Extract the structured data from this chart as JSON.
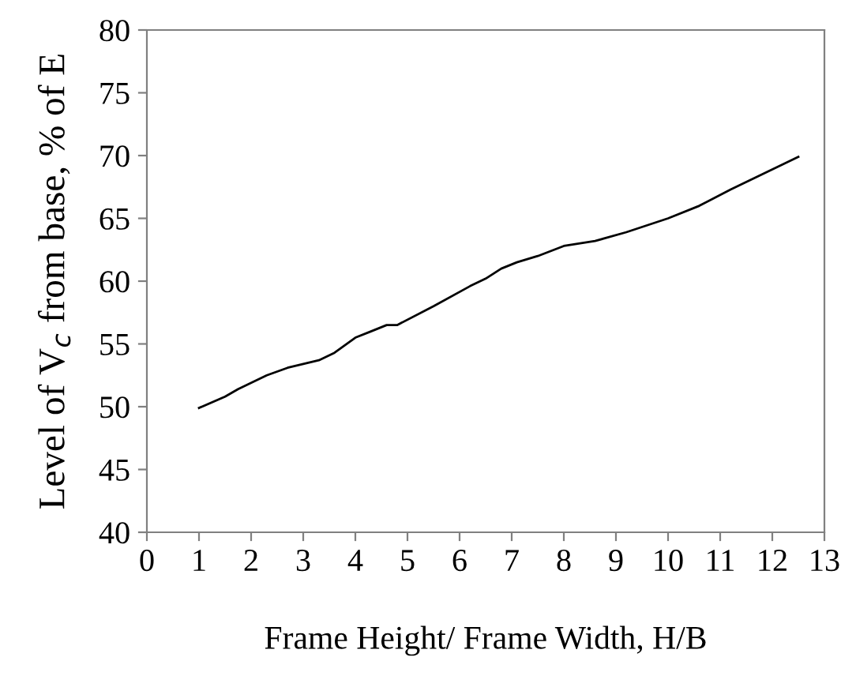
{
  "chart_data": {
    "type": "line",
    "xlabel": "Frame Height/ Frame Width, H/B",
    "ylabel": "Level of V$_{c}$ from base, % of E",
    "x": [
      1,
      1.5,
      1.75,
      2.3,
      2.7,
      3.3,
      3.6,
      4,
      4.3,
      4.6,
      4.8,
      5.5,
      6.2,
      6.5,
      6.8,
      7.1,
      7.5,
      8,
      8.6,
      9.2,
      10,
      10.6,
      11.2,
      12.5
    ],
    "series": [
      {
        "color": "#000000",
        "values": [
          49.9,
          50.8,
          51.4,
          52.5,
          53.1,
          53.7,
          54.3,
          55.5,
          56,
          56.5,
          56.5,
          58,
          59.6,
          60.2,
          61,
          61.5,
          62,
          62.8,
          63.2,
          63.9,
          65,
          66,
          67.3,
          69.9
        ]
      }
    ],
    "xlim": [
      0,
      13
    ],
    "xticks": [
      0,
      1,
      2,
      3,
      4,
      5,
      6,
      7,
      8,
      9,
      10,
      11,
      12,
      13
    ],
    "ylim": [
      40,
      80
    ],
    "yticks": [
      40,
      45,
      50,
      55,
      60,
      65,
      70,
      75,
      80
    ],
    "grid": false,
    "legend": false,
    "marker": "none",
    "line_style": "solid"
  }
}
